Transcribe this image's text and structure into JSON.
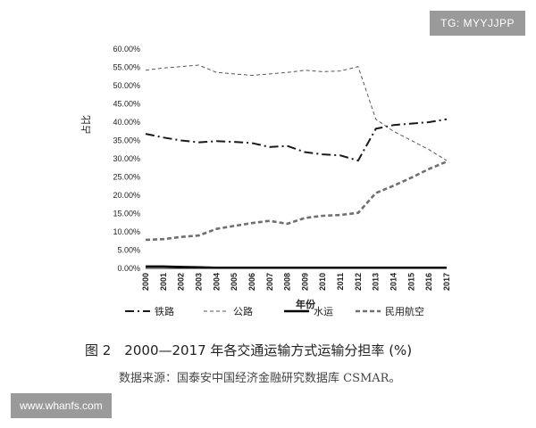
{
  "watermarks": {
    "top_right": "TG: MYYJJPP",
    "bottom_left": "www.whanfs.com"
  },
  "caption": {
    "title": "图 2　2000—2017 年各交通运输方式运输分担率 (%)",
    "source": "数据来源：国泰安中国经济金融研究数据库 CSMAR。"
  },
  "chart_data": {
    "type": "line",
    "ylabel": "占比",
    "xlabel": "年份",
    "ylim": [
      0,
      60
    ],
    "ytick_step": 5,
    "ytick_labels": [
      "0.00%",
      "5.00%",
      "10.00%",
      "15.00%",
      "20.00%",
      "25.00%",
      "30.00%",
      "35.00%",
      "40.00%",
      "45.00%",
      "50.00%",
      "55.00%",
      "60.00%"
    ],
    "categories": [
      "2000",
      "2001",
      "2002",
      "2003",
      "2004",
      "2005",
      "2006",
      "2007",
      "2008",
      "2009",
      "2010",
      "2011",
      "2012",
      "2013",
      "2014",
      "2015",
      "2016",
      "2017"
    ],
    "legend_position": "bottom",
    "series": [
      {
        "name": "铁路",
        "style": "dash-dot",
        "color": "#1a1a1a",
        "values": [
          36.8,
          35.8,
          35.0,
          34.5,
          34.8,
          34.6,
          34.3,
          33.2,
          33.5,
          31.8,
          31.2,
          30.9,
          29.5,
          38.2,
          39.2,
          39.6,
          40.0,
          40.8
        ]
      },
      {
        "name": "公路",
        "style": "dashed",
        "color": "#555555",
        "values": [
          54.2,
          54.8,
          55.2,
          55.6,
          53.6,
          53.2,
          52.8,
          53.2,
          53.6,
          54.2,
          53.8,
          54.0,
          55.2,
          40.8,
          37.5,
          35.0,
          32.5,
          29.5
        ]
      },
      {
        "name": "水运",
        "style": "solid",
        "color": "#000000",
        "values": [
          0.5,
          0.5,
          0.4,
          0.3,
          0.2,
          0.2,
          0.2,
          0.2,
          0.2,
          0.2,
          0.2,
          0.2,
          0.2,
          0.2,
          0.2,
          0.2,
          0.2,
          0.2
        ]
      },
      {
        "name": "民用航空",
        "style": "dashed-thick",
        "color": "#707070",
        "values": [
          7.8,
          8.0,
          8.6,
          9.0,
          10.8,
          11.6,
          12.4,
          13.0,
          12.2,
          13.8,
          14.4,
          14.6,
          15.2,
          20.6,
          22.6,
          24.8,
          27.2,
          29.2
        ]
      }
    ]
  }
}
